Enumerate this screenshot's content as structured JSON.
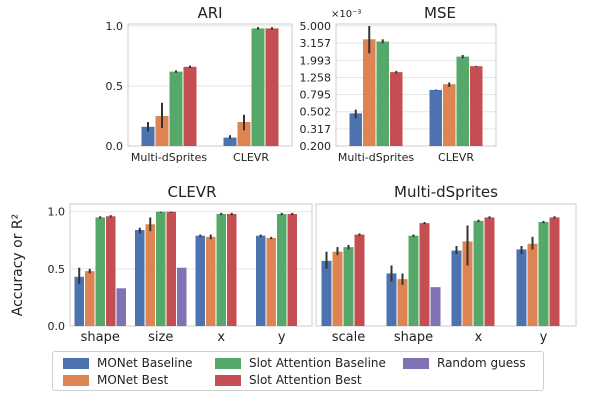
{
  "colors": {
    "MONet Baseline": "#4c72b0",
    "MONet Best": "#dd8452",
    "Slot Attention Baseline": "#55a868",
    "Slot Attention Best": "#c44e52",
    "Random guess": "#8172b3",
    "error_bar": "#333333",
    "frame": "#cccccc",
    "grid": "#e6e6e6"
  },
  "legend": {
    "entries": [
      {
        "label": "MONet Baseline",
        "color": "#4c72b0"
      },
      {
        "label": "MONet Best",
        "color": "#dd8452"
      },
      {
        "label": "Slot Attention Baseline",
        "color": "#55a868"
      },
      {
        "label": "Slot Attention Best",
        "color": "#c44e52"
      },
      {
        "label": "Random guess",
        "color": "#8172b3"
      }
    ]
  },
  "chart_data": [
    {
      "id": "ari",
      "type": "bar",
      "title": "ARI",
      "xlabel": "",
      "ylabel": "",
      "categories": [
        "Multi-dSprites",
        "CLEVR"
      ],
      "yticks": [
        "0.0",
        "0.5",
        "1.0"
      ],
      "ylim": [
        0,
        1
      ],
      "series": [
        {
          "name": "MONet Baseline",
          "values": [
            0.16,
            0.07
          ],
          "err": [
            [
              0.12,
              0.2
            ],
            [
              0.06,
              0.09
            ]
          ]
        },
        {
          "name": "MONet Best",
          "values": [
            0.25,
            0.2
          ],
          "err": [
            [
              0.15,
              0.36
            ],
            [
              0.13,
              0.26
            ]
          ]
        },
        {
          "name": "Slot Attention Baseline",
          "values": [
            0.62,
            0.98
          ],
          "err": [
            [
              0.61,
              0.63
            ],
            [
              0.97,
              0.99
            ]
          ]
        },
        {
          "name": "Slot Attention Best",
          "values": [
            0.66,
            0.98
          ],
          "err": [
            [
              0.65,
              0.67
            ],
            [
              0.97,
              0.99
            ]
          ]
        }
      ]
    },
    {
      "id": "mse",
      "type": "bar",
      "title": "MSE",
      "scale_label": "×10⁻³",
      "xlabel": "",
      "ylabel": "",
      "categories": [
        "Multi-dSprites",
        "CLEVR"
      ],
      "yticks": [
        "5.000",
        "3.157",
        "1.993",
        "1.258",
        "0.795",
        "0.502",
        "0.317",
        "0.200"
      ],
      "ylim": [
        0.2,
        5.0
      ],
      "yscale": "log",
      "series": [
        {
          "name": "MONet Baseline",
          "values": [
            0.48,
            0.9
          ],
          "err": [
            [
              0.42,
              0.53
            ],
            [
              0.89,
              0.91
            ]
          ]
        },
        {
          "name": "MONet Best",
          "values": [
            3.5,
            1.05
          ],
          "err": [
            [
              2.4,
              5.0
            ],
            [
              0.98,
              1.1
            ]
          ]
        },
        {
          "name": "Slot Attention Baseline",
          "values": [
            3.3,
            2.2
          ],
          "err": [
            [
              3.15,
              3.5
            ],
            [
              2.1,
              2.3
            ]
          ]
        },
        {
          "name": "Slot Attention Best",
          "values": [
            1.45,
            1.7
          ],
          "err": [
            [
              1.4,
              1.5
            ],
            [
              1.68,
              1.72
            ]
          ]
        }
      ]
    },
    {
      "id": "clevr",
      "type": "bar",
      "title": "CLEVR",
      "xlabel": "",
      "ylabel": "Accuracy or R²",
      "categories": [
        "shape",
        "size",
        "x",
        "y"
      ],
      "yticks": [
        "0.0",
        "0.5",
        "1.0"
      ],
      "ylim": [
        0,
        1.05
      ],
      "series": [
        {
          "name": "MONet Baseline",
          "values": [
            0.43,
            0.84,
            0.79,
            0.79
          ],
          "err": [
            [
              0.37,
              0.51
            ],
            [
              0.81,
              0.86
            ],
            [
              0.78,
              0.8
            ],
            [
              0.78,
              0.8
            ]
          ]
        },
        {
          "name": "MONet Best",
          "values": [
            0.48,
            0.89,
            0.78,
            0.77
          ],
          "err": [
            [
              0.46,
              0.5
            ],
            [
              0.83,
              0.95
            ],
            [
              0.76,
              0.8
            ],
            [
              0.76,
              0.78
            ]
          ]
        },
        {
          "name": "Slot Attention Baseline",
          "values": [
            0.95,
            1.0,
            0.98,
            0.98
          ],
          "err": [
            [
              0.94,
              0.96
            ],
            [
              0.99,
              1.0
            ],
            [
              0.97,
              0.99
            ],
            [
              0.97,
              0.99
            ]
          ]
        },
        {
          "name": "Slot Attention Best",
          "values": [
            0.96,
            1.0,
            0.98,
            0.98
          ],
          "err": [
            [
              0.95,
              0.97
            ],
            [
              0.99,
              1.0
            ],
            [
              0.97,
              0.99
            ],
            [
              0.97,
              0.99
            ]
          ]
        },
        {
          "name": "Random guess",
          "values": [
            0.33,
            0.51,
            null,
            null
          ],
          "err": [
            null,
            null,
            null,
            null
          ]
        }
      ]
    },
    {
      "id": "multi",
      "type": "bar",
      "title": "Multi-dSprites",
      "xlabel": "",
      "ylabel": "",
      "categories": [
        "scale",
        "shape",
        "x",
        "y"
      ],
      "yticks": [],
      "ylim": [
        0,
        1.05
      ],
      "series": [
        {
          "name": "MONet Baseline",
          "values": [
            0.57,
            0.46,
            0.66,
            0.67
          ],
          "err": [
            [
              0.5,
              0.65
            ],
            [
              0.39,
              0.53
            ],
            [
              0.63,
              0.7
            ],
            [
              0.63,
              0.7
            ]
          ]
        },
        {
          "name": "MONet Best",
          "values": [
            0.65,
            0.41,
            0.74,
            0.72
          ],
          "err": [
            [
              0.62,
              0.69
            ],
            [
              0.36,
              0.46
            ],
            [
              0.53,
              0.88
            ],
            [
              0.67,
              0.78
            ]
          ]
        },
        {
          "name": "Slot Attention Baseline",
          "values": [
            0.69,
            0.79,
            0.92,
            0.91
          ],
          "err": [
            [
              0.67,
              0.71
            ],
            [
              0.78,
              0.8
            ],
            [
              0.91,
              0.93
            ],
            [
              0.9,
              0.92
            ]
          ]
        },
        {
          "name": "Slot Attention Best",
          "values": [
            0.8,
            0.9,
            0.95,
            0.95
          ],
          "err": [
            [
              0.79,
              0.81
            ],
            [
              0.89,
              0.91
            ],
            [
              0.94,
              0.96
            ],
            [
              0.94,
              0.96
            ]
          ]
        },
        {
          "name": "Random guess",
          "values": [
            null,
            0.34,
            null,
            null
          ],
          "err": [
            null,
            null,
            null,
            null
          ]
        }
      ]
    }
  ]
}
